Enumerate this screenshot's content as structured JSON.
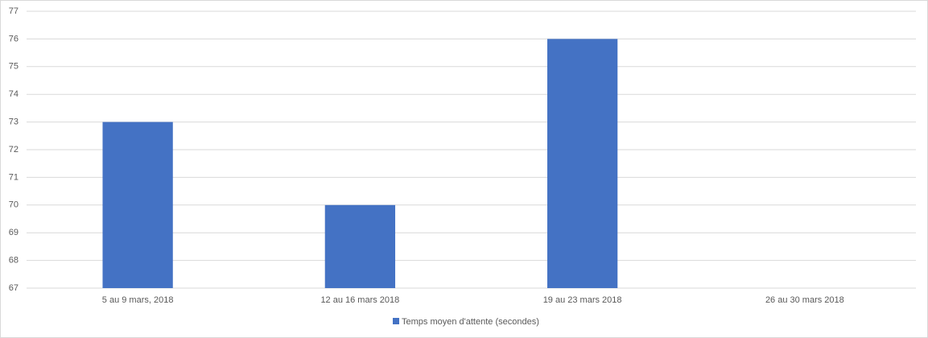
{
  "chart_data": {
    "type": "bar",
    "categories": [
      "5 au 9 mars, 2018",
      "12 au 16 mars 2018",
      "19 au 23 mars 2018",
      "26 au 30 mars 2018"
    ],
    "series": [
      {
        "name": "Temps moyen d'attente (secondes)",
        "color": "#4472c4",
        "values": [
          73,
          70,
          76,
          null
        ]
      }
    ],
    "ylim": [
      67,
      77
    ],
    "yticks": [
      67,
      68,
      69,
      70,
      71,
      72,
      73,
      74,
      75,
      76,
      77
    ],
    "grid": true,
    "legend": "bottom"
  }
}
